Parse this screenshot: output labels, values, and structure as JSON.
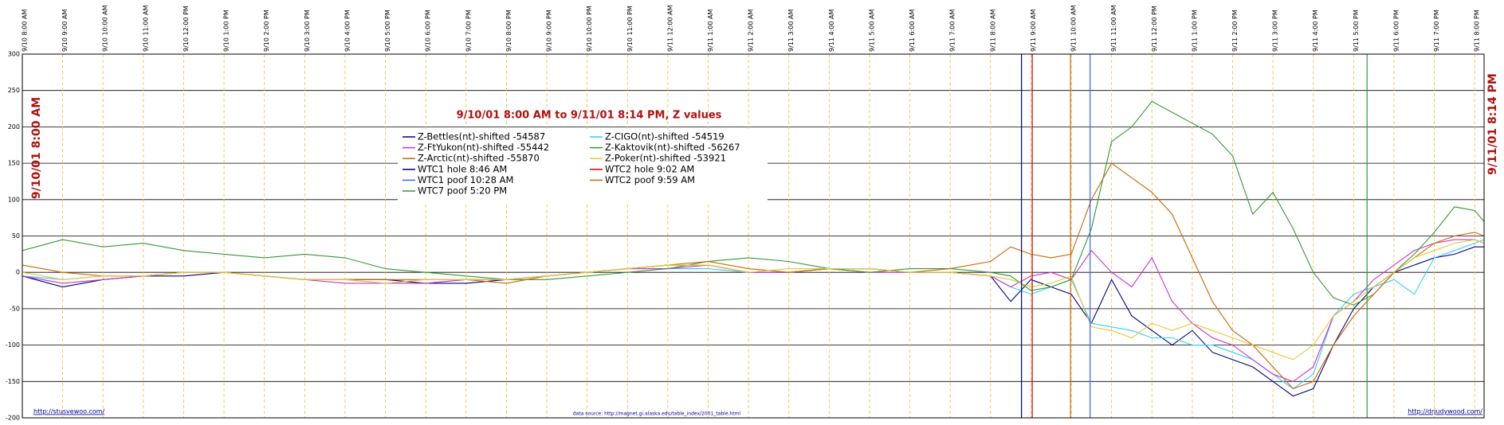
{
  "chart_data": {
    "type": "line",
    "title": "9/10/01 8:00 AM  to  9/11/01 8:14 PM, Z values",
    "start_label": "9/10/01 8:00 AM",
    "end_label": "9/11/01 8:14 PM",
    "xlim": [
      0,
      36.233
    ],
    "xticks": [
      {
        "value": 0,
        "label": "9/10 8:00 AM"
      },
      {
        "value": 1,
        "label": "9/10 9:00 AM"
      },
      {
        "value": 2,
        "label": "9/10 10:00 AM"
      },
      {
        "value": 3,
        "label": "9/10 11:00 AM"
      },
      {
        "value": 4,
        "label": "9/10 12:00 PM"
      },
      {
        "value": 5,
        "label": "9/10 1:00 PM"
      },
      {
        "value": 6,
        "label": "9/10 2:00 PM"
      },
      {
        "value": 7,
        "label": "9/10 3:00 PM"
      },
      {
        "value": 8,
        "label": "9/10 4:00 PM"
      },
      {
        "value": 9,
        "label": "9/10 5:00 PM"
      },
      {
        "value": 10,
        "label": "9/10 6:00 PM"
      },
      {
        "value": 11,
        "label": "9/10 7:00 PM"
      },
      {
        "value": 12,
        "label": "9/10 8:00 PM"
      },
      {
        "value": 13,
        "label": "9/10 9:00 PM"
      },
      {
        "value": 14,
        "label": "9/10 10:00 PM"
      },
      {
        "value": 15,
        "label": "9/10 11:00 PM"
      },
      {
        "value": 16,
        "label": "9/11 12:00 AM"
      },
      {
        "value": 17,
        "label": "9/11 1:00 AM"
      },
      {
        "value": 18,
        "label": "9/11 2:00 AM"
      },
      {
        "value": 19,
        "label": "9/11 3:00 AM"
      },
      {
        "value": 20,
        "label": "9/11 4:00 AM"
      },
      {
        "value": 21,
        "label": "9/11 5:00 AM"
      },
      {
        "value": 22,
        "label": "9/11 6:00 AM"
      },
      {
        "value": 23,
        "label": "9/11 7:00 AM"
      },
      {
        "value": 24,
        "label": "9/11 8:00 AM"
      },
      {
        "value": 25,
        "label": "9/11 9:00 AM"
      },
      {
        "value": 26,
        "label": "9/11 10:00 AM"
      },
      {
        "value": 27,
        "label": "9/11 11:00 AM"
      },
      {
        "value": 28,
        "label": "9/11 12:00 PM"
      },
      {
        "value": 29,
        "label": "9/11 1:00 PM"
      },
      {
        "value": 30,
        "label": "9/11 2:00 PM"
      },
      {
        "value": 31,
        "label": "9/11 3:00 PM"
      },
      {
        "value": 32,
        "label": "9/11 4:00 PM"
      },
      {
        "value": 33,
        "label": "9/11 5:00 PM"
      },
      {
        "value": 34,
        "label": "9/11 6:00 PM"
      },
      {
        "value": 35,
        "label": "9/11 7:00 PM"
      },
      {
        "value": 36,
        "label": "9/11 8:00 PM"
      }
    ],
    "ylim": [
      -200,
      300
    ],
    "yticks": [
      -200,
      -150,
      -100,
      -50,
      0,
      50,
      100,
      150,
      200,
      250,
      300
    ],
    "grid": true,
    "x": [
      0,
      1,
      2,
      3,
      4,
      5,
      6,
      7,
      8,
      9,
      10,
      11,
      12,
      13,
      14,
      15,
      16,
      17,
      18,
      19,
      20,
      21,
      22,
      23,
      24,
      24.5,
      25,
      25.5,
      26,
      26.5,
      27,
      27.5,
      28,
      28.5,
      29,
      29.5,
      30,
      30.5,
      31,
      31.5,
      32,
      32.5,
      33,
      33.5,
      34,
      34.5,
      35,
      35.5,
      36,
      36.233
    ],
    "series": [
      {
        "name": "Z-Bettles(nt)-shifted -54587",
        "color": "#000080",
        "values": [
          -5,
          -20,
          -10,
          -5,
          -5,
          0,
          -5,
          -10,
          -10,
          -10,
          -15,
          -15,
          -10,
          -5,
          0,
          5,
          10,
          10,
          0,
          0,
          5,
          5,
          0,
          0,
          -5,
          -40,
          -10,
          -20,
          -30,
          -70,
          -10,
          -60,
          -80,
          -100,
          -80,
          -110,
          -120,
          -130,
          -150,
          -170,
          -160,
          -100,
          -50,
          -20,
          0,
          10,
          20,
          25,
          35,
          35
        ]
      },
      {
        "name": "Z-CIGO(nt)-shifted -54519",
        "color": "#33ccff",
        "values": [
          -5,
          -10,
          -5,
          -5,
          0,
          0,
          -5,
          -10,
          -10,
          -15,
          -15,
          -10,
          -10,
          -5,
          0,
          5,
          5,
          5,
          0,
          0,
          5,
          5,
          0,
          0,
          -5,
          -20,
          -30,
          -20,
          -10,
          -70,
          -75,
          -80,
          -90,
          -90,
          -100,
          -100,
          -110,
          -120,
          -140,
          -160,
          -140,
          -60,
          -30,
          -20,
          -10,
          -30,
          20,
          30,
          40,
          45
        ]
      },
      {
        "name": "Z-FtYukon(nt)-shifted -55442",
        "color": "#cc33cc",
        "values": [
          -5,
          -15,
          -10,
          -5,
          0,
          0,
          -5,
          -10,
          -15,
          -15,
          -15,
          -10,
          -10,
          -5,
          0,
          5,
          5,
          10,
          0,
          0,
          5,
          0,
          0,
          0,
          -5,
          -20,
          -5,
          0,
          -10,
          30,
          0,
          -20,
          20,
          -40,
          -70,
          -90,
          -100,
          -120,
          -140,
          -150,
          -130,
          -60,
          -40,
          -10,
          10,
          30,
          40,
          45,
          45,
          40
        ]
      },
      {
        "name": "Z-Kaktovik(nt)-shifted -56267",
        "color": "#339933",
        "values": [
          30,
          45,
          35,
          40,
          30,
          25,
          20,
          25,
          20,
          5,
          0,
          -5,
          -10,
          -10,
          -5,
          0,
          5,
          15,
          20,
          15,
          5,
          0,
          5,
          5,
          0,
          -5,
          -25,
          -20,
          -10,
          60,
          180,
          200,
          235,
          220,
          205,
          190,
          160,
          80,
          110,
          60,
          0,
          -35,
          -45,
          -30,
          0,
          25,
          55,
          90,
          85,
          70
        ]
      },
      {
        "name": "Z-Arctic(nt)-shifted -55870",
        "color": "#cc6600",
        "values": [
          10,
          0,
          -5,
          -5,
          0,
          0,
          -5,
          -10,
          -10,
          -10,
          -10,
          -10,
          -15,
          -5,
          0,
          5,
          10,
          15,
          5,
          0,
          5,
          5,
          0,
          5,
          15,
          35,
          25,
          20,
          25,
          100,
          150,
          130,
          110,
          80,
          20,
          -40,
          -80,
          -100,
          -130,
          -160,
          -150,
          -100,
          -60,
          -30,
          0,
          20,
          40,
          50,
          55,
          50
        ]
      },
      {
        "name": "Z-Poker(nt)-shifted -53921",
        "color": "#e6c833",
        "values": [
          0,
          -10,
          -5,
          -5,
          0,
          0,
          -5,
          -10,
          -10,
          -15,
          -10,
          -10,
          -10,
          -5,
          0,
          5,
          10,
          10,
          0,
          5,
          5,
          5,
          0,
          0,
          -5,
          -10,
          -20,
          -15,
          -5,
          -75,
          -80,
          -90,
          -70,
          -80,
          -70,
          -80,
          -90,
          -100,
          -110,
          -120,
          -100,
          -60,
          -40,
          -20,
          0,
          20,
          30,
          40,
          45,
          40
        ]
      }
    ],
    "events": [
      {
        "name": "WTC1 hole 8:46 AM",
        "color": "#000080",
        "x": 24.767
      },
      {
        "name": "WTC2 hole 9:02 AM",
        "color": "#cc0000",
        "x": 25.033
      },
      {
        "name": "WTC1 poof 10:28 AM",
        "color": "#3366ff",
        "x": 26.467
      },
      {
        "name": "WTC2 poof 9:59 AM",
        "color": "#cc6600",
        "x": 25.983
      },
      {
        "name": "WTC7 poof 5:20 PM",
        "color": "#339933",
        "x": 33.333
      }
    ],
    "footer_left": "http://stusvewoo.com/",
    "footer_center": "data source: http://magnet.gi.alaska.edu/table_index/2001_table.html",
    "footer_right": "http://drjudywood.com/"
  }
}
